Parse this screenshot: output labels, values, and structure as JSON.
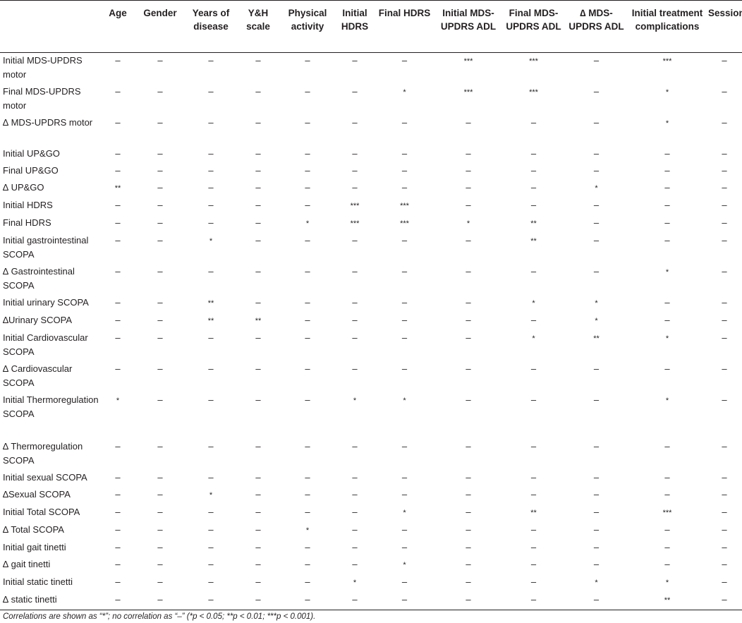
{
  "columns": [
    "",
    "Age",
    "Gender",
    "Years of disease",
    "Y&H scale",
    "Physical activity",
    "Initial HDRS",
    "Final HDRS",
    "Initial MDS-UPDRS ADL",
    "Final MDS-UPDRS ADL",
    "∆ MDS-UPDRS ADL",
    "Initial treatment complications",
    "Sessions"
  ],
  "rows": [
    {
      "label": "Initial MDS-UPDRS motor",
      "cells": [
        "–",
        "–",
        "–",
        "–",
        "–",
        "–",
        "–",
        "***",
        "***",
        "–",
        "***",
        "–"
      ]
    },
    {
      "label": "Final MDS-UPDRS motor",
      "cells": [
        "–",
        "–",
        "–",
        "–",
        "–",
        "–",
        "*",
        "***",
        "***",
        "–",
        "*",
        "–"
      ]
    },
    {
      "label": "∆ MDS-UPDRS motor",
      "cells": [
        "–",
        "–",
        "–",
        "–",
        "–",
        "–",
        "–",
        "–",
        "–",
        "–",
        "*",
        "–"
      ]
    },
    {
      "label": "Initial UP&GO",
      "cells": [
        "–",
        "–",
        "–",
        "–",
        "–",
        "–",
        "–",
        "–",
        "–",
        "–",
        "–",
        "–"
      ]
    },
    {
      "label": "Final UP&GO",
      "cells": [
        "–",
        "–",
        "–",
        "–",
        "–",
        "–",
        "–",
        "–",
        "–",
        "–",
        "–",
        "–"
      ]
    },
    {
      "label": "∆ UP&GO",
      "cells": [
        "**",
        "–",
        "–",
        "–",
        "–",
        "–",
        "–",
        "–",
        "–",
        "*",
        "–",
        "–"
      ]
    },
    {
      "label": "Initial HDRS",
      "cells": [
        "–",
        "–",
        "–",
        "–",
        "–",
        "***",
        "***",
        "–",
        "–",
        "–",
        "–",
        "–"
      ]
    },
    {
      "label": "Final HDRS",
      "cells": [
        "–",
        "–",
        "–",
        "–",
        "*",
        "***",
        "***",
        "*",
        "**",
        "–",
        "–",
        "–"
      ]
    },
    {
      "label": "Initial gastrointestinal SCOPA",
      "cells": [
        "–",
        "–",
        "*",
        "–",
        "–",
        "–",
        "–",
        "–",
        "**",
        "–",
        "–",
        "–"
      ]
    },
    {
      "label": "∆ Gastrointestinal SCOPA",
      "cells": [
        "–",
        "–",
        "–",
        "–",
        "–",
        "–",
        "–",
        "–",
        "–",
        "–",
        "*",
        "–"
      ]
    },
    {
      "label": "Initial urinary SCOPA",
      "cells": [
        "–",
        "–",
        "**",
        "–",
        "–",
        "–",
        "–",
        "–",
        "*",
        "*",
        "–",
        "–"
      ]
    },
    {
      "label": "∆Urinary SCOPA",
      "cells": [
        "–",
        "–",
        "**",
        "**",
        "–",
        "–",
        "–",
        "–",
        "–",
        "*",
        "–",
        "–"
      ]
    },
    {
      "label": "Initial Cardiovascular SCOPA",
      "cells": [
        "–",
        "–",
        "–",
        "–",
        "–",
        "–",
        "–",
        "–",
        "*",
        "**",
        "*",
        "–"
      ]
    },
    {
      "label": "∆ Cardiovascular SCOPA",
      "cells": [
        "–",
        "–",
        "–",
        "–",
        "–",
        "–",
        "–",
        "–",
        "–",
        "–",
        "–",
        "–"
      ]
    },
    {
      "label": "Initial Thermoregulation SCOPA",
      "cells": [
        "*",
        "–",
        "–",
        "–",
        "–",
        "*",
        "*",
        "–",
        "–",
        "–",
        "*",
        "–"
      ]
    },
    {
      "label": "∆ Thermoregulation SCOPA",
      "cells": [
        "–",
        "–",
        "–",
        "–",
        "–",
        "–",
        "–",
        "–",
        "–",
        "–",
        "–",
        "–"
      ]
    },
    {
      "label": "Initial sexual SCOPA",
      "cells": [
        "–",
        "–",
        "–",
        "–",
        "–",
        "–",
        "–",
        "–",
        "–",
        "–",
        "–",
        "–"
      ]
    },
    {
      "label": "∆Sexual SCOPA",
      "cells": [
        "–",
        "–",
        "*",
        "–",
        "–",
        "–",
        "–",
        "–",
        "–",
        "–",
        "–",
        "–"
      ]
    },
    {
      "label": "Initial Total SCOPA",
      "cells": [
        "–",
        "–",
        "–",
        "–",
        "–",
        "–",
        "*",
        "–",
        "**",
        "–",
        "***",
        "–"
      ]
    },
    {
      "label": "∆ Total SCOPA",
      "cells": [
        "–",
        "–",
        "–",
        "–",
        "*",
        "–",
        "–",
        "–",
        "–",
        "–",
        "–",
        "–"
      ]
    },
    {
      "label": "Initial gait tinetti",
      "cells": [
        "–",
        "–",
        "–",
        "–",
        "–",
        "–",
        "–",
        "–",
        "–",
        "–",
        "–",
        "–"
      ]
    },
    {
      "label": "∆ gait tinetti",
      "cells": [
        "–",
        "–",
        "–",
        "–",
        "–",
        "–",
        "*",
        "–",
        "–",
        "–",
        "–",
        "–"
      ]
    },
    {
      "label": "Initial static tinetti",
      "cells": [
        "–",
        "–",
        "–",
        "–",
        "–",
        "*",
        "–",
        "–",
        "–",
        "*",
        "*",
        "–"
      ]
    },
    {
      "label": "∆ static tinetti",
      "cells": [
        "–",
        "–",
        "–",
        "–",
        "–",
        "–",
        "–",
        "–",
        "–",
        "–",
        "**",
        "–"
      ]
    }
  ],
  "footnote": "Correlations are shown as “*”; no correlation as “–” (*p < 0.05; **p < 0.01; ***p < 0.001)."
}
